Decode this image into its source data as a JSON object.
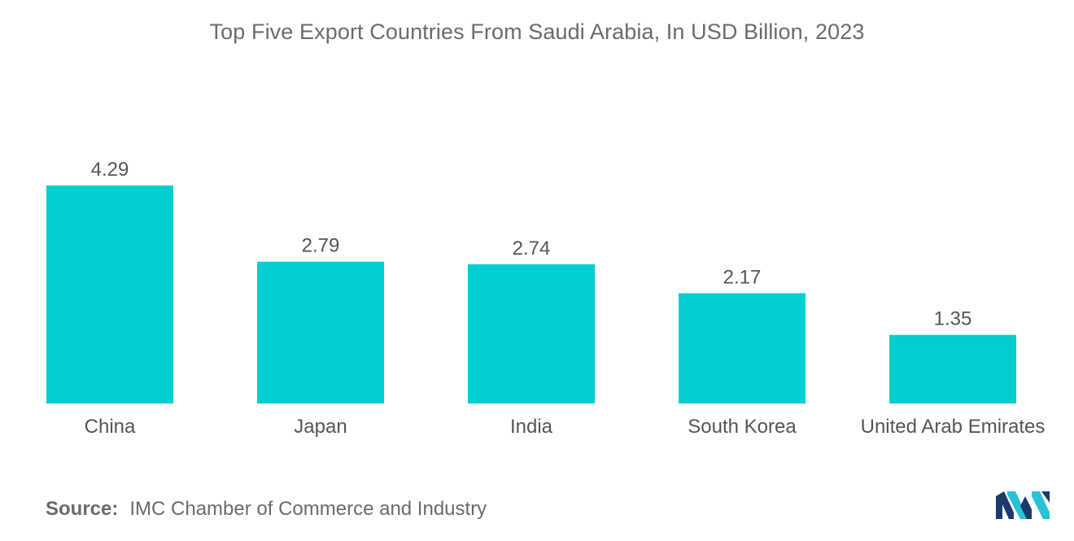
{
  "chart_data": {
    "type": "bar",
    "title": "Top Five Export Countries From Saudi Arabia, In USD Billion, 2023",
    "categories": [
      "China",
      "Japan",
      "India",
      "South Korea",
      "United Arab Emirates"
    ],
    "values": [
      4.29,
      2.79,
      2.74,
      2.17,
      1.35
    ],
    "value_labels": [
      "4.29",
      "2.79",
      "2.74",
      "2.17",
      "1.35"
    ],
    "ylim": [
      0,
      4.29
    ],
    "grid": false,
    "bar_color": "#00CED1"
  },
  "source": {
    "label": "Source:",
    "text": "IMC Chamber of Commerce and Industry"
  },
  "logo": {
    "icon": "mordor-intelligence-logo",
    "colors": [
      "#1b3a6b",
      "#27c3d6"
    ]
  }
}
